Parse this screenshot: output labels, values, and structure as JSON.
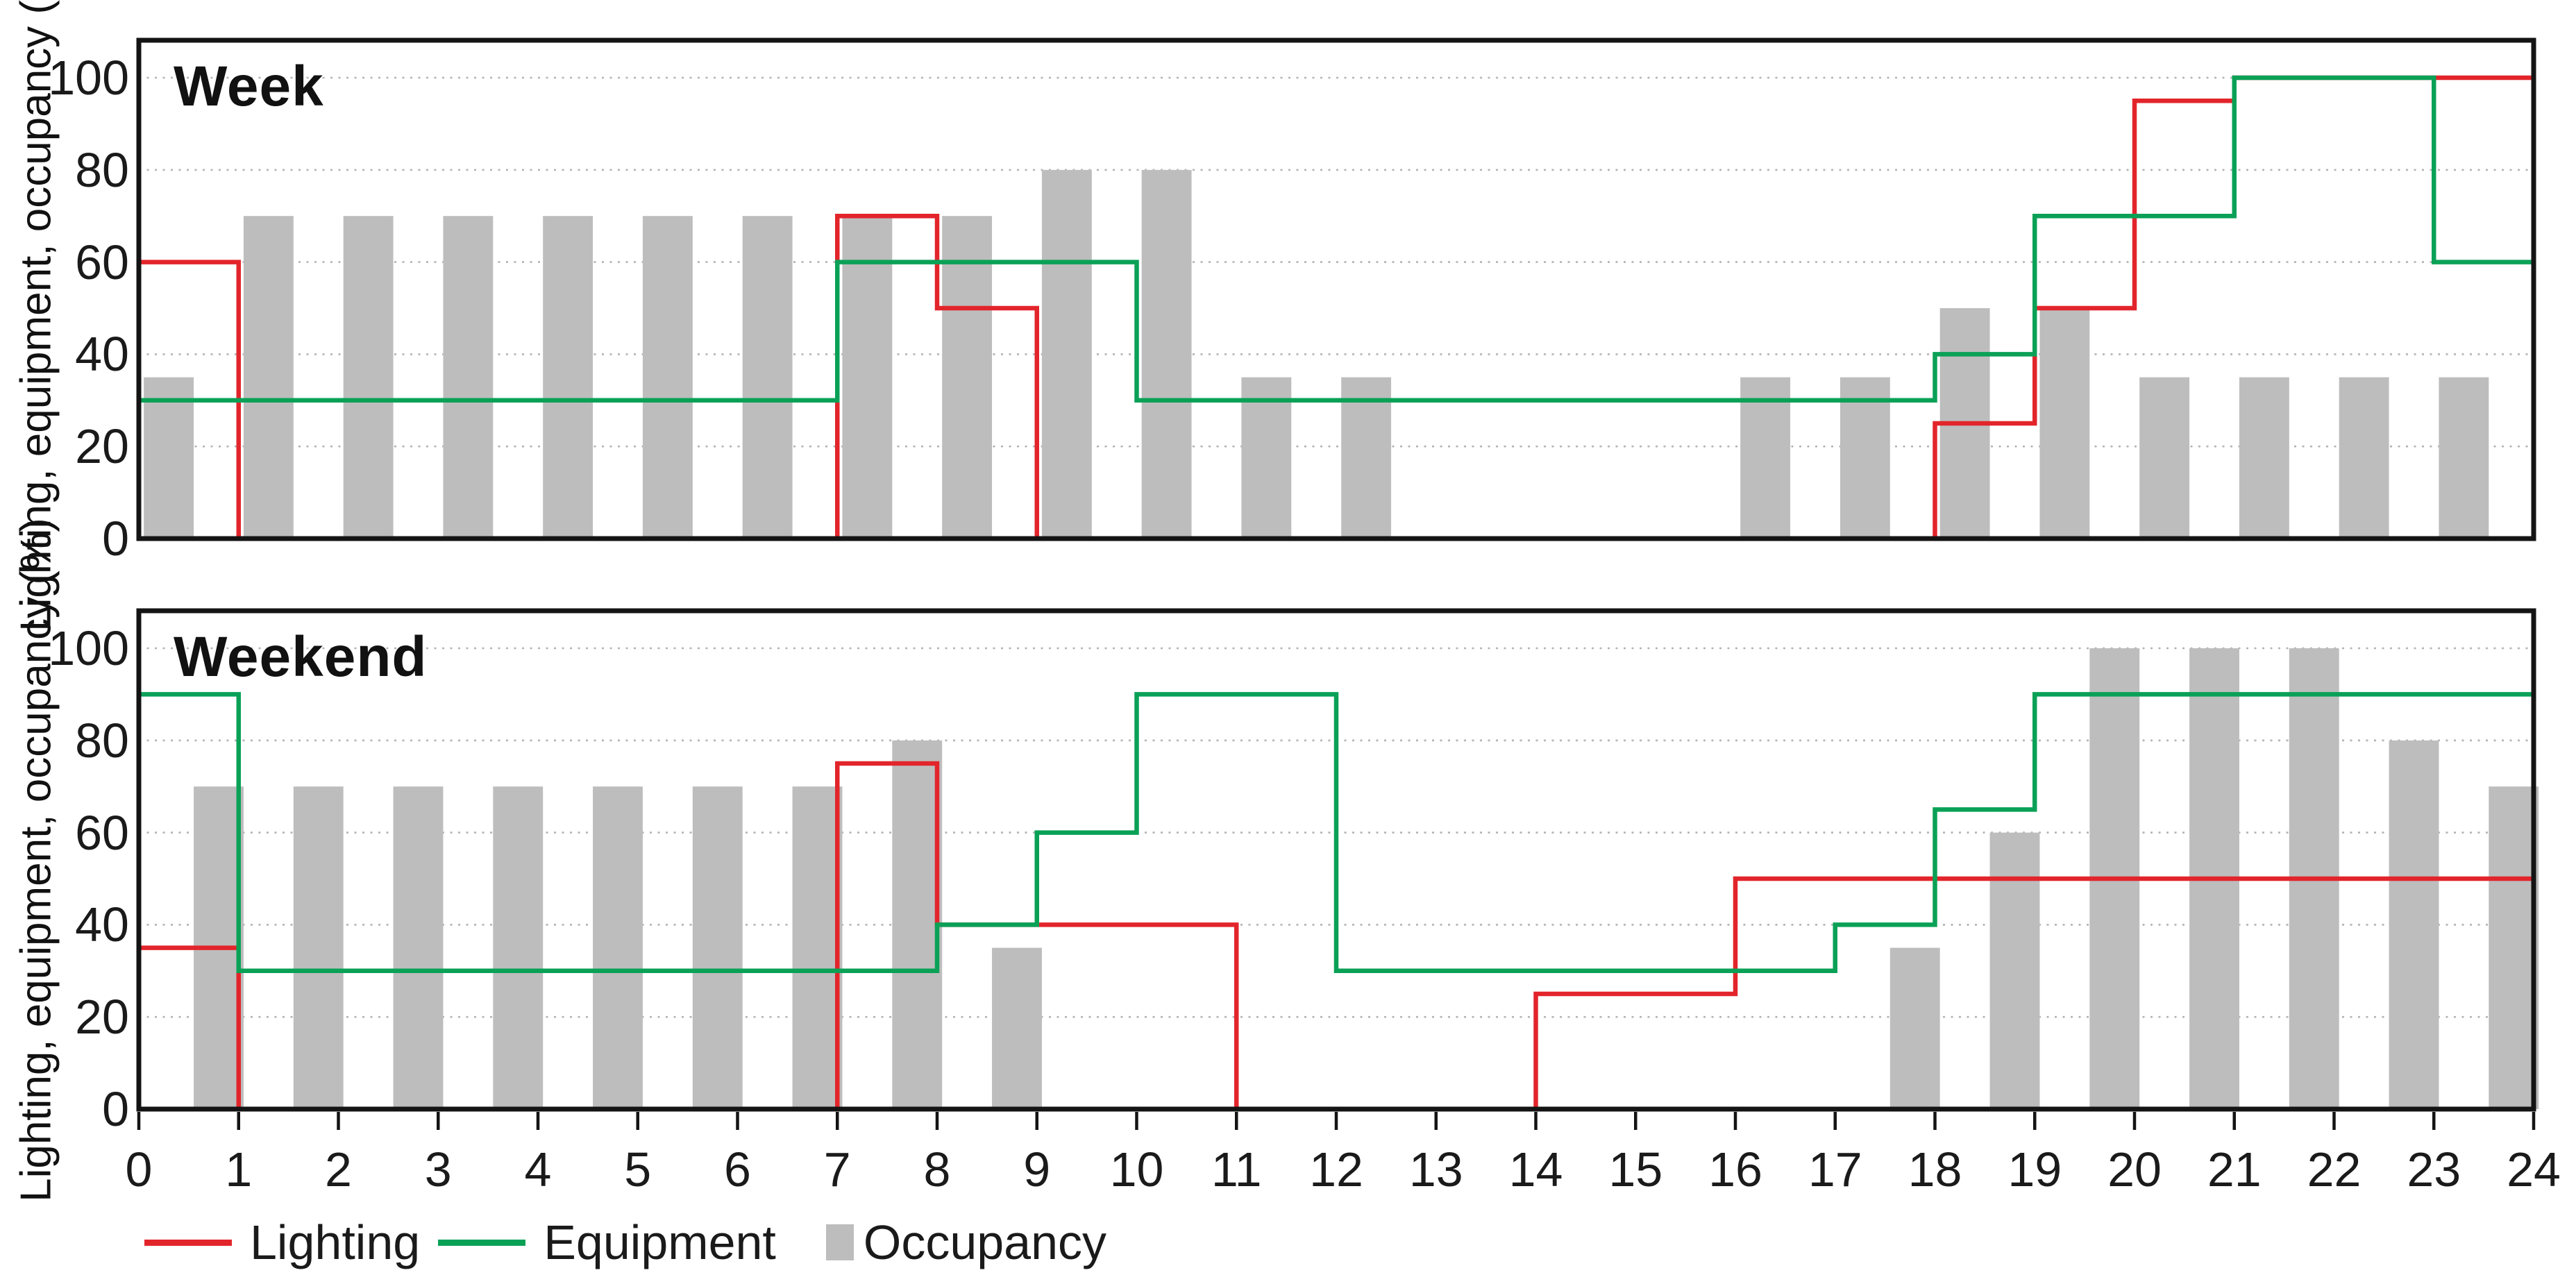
{
  "colors": {
    "lighting": "#e2252b",
    "equipment": "#0aa157",
    "occupancy": "#bdbdbd",
    "grid": "#b3b3b3",
    "axis": "#141414",
    "text": "#1a1a1a"
  },
  "y_axis_label": "Lighting, equipment, occupancy (%)",
  "legend": [
    {
      "label": "Lighting",
      "swatch": "line",
      "color_key": "lighting"
    },
    {
      "label": "Equipment",
      "swatch": "line",
      "color_key": "equipment"
    },
    {
      "label": "Occupancy",
      "swatch": "box",
      "color_key": "occupancy"
    }
  ],
  "chart_data": [
    {
      "type": "bar",
      "subtype": "step-lines-with-bars",
      "title": "Week",
      "xlim": [
        0,
        24
      ],
      "ylim": [
        0,
        100
      ],
      "x_ticks": [
        0,
        1,
        2,
        3,
        4,
        5,
        6,
        7,
        8,
        9,
        10,
        11,
        12,
        13,
        14,
        15,
        16,
        17,
        18,
        19,
        20,
        21,
        22,
        23,
        24
      ],
      "y_ticks": [
        0,
        20,
        40,
        60,
        80,
        100
      ],
      "grid": "dotted horizontal at 20,40,60,80,100",
      "series": [
        {
          "name": "Lighting",
          "style": "step-line",
          "unit": "%",
          "segments_hour_value": [
            [
              0,
              60
            ],
            [
              1,
              0
            ],
            [
              7,
              70
            ],
            [
              8,
              50
            ],
            [
              9,
              0
            ],
            [
              18,
              25
            ],
            [
              19,
              50
            ],
            [
              20,
              95
            ],
            [
              21,
              100
            ]
          ]
        },
        {
          "name": "Equipment",
          "style": "step-line",
          "unit": "%",
          "segments_hour_value": [
            [
              0,
              30
            ],
            [
              7,
              60
            ],
            [
              10,
              30
            ],
            [
              18,
              40
            ],
            [
              19,
              70
            ],
            [
              21,
              100
            ],
            [
              23,
              60
            ]
          ]
        }
      ],
      "bars": {
        "name": "Occupancy",
        "unit": "%",
        "bar_width_hours": 0.5,
        "values_xstart_value": [
          [
            0.05,
            35
          ],
          [
            1.05,
            70
          ],
          [
            2.05,
            70
          ],
          [
            3.05,
            70
          ],
          [
            4.05,
            70
          ],
          [
            5.05,
            70
          ],
          [
            6.05,
            70
          ],
          [
            7.05,
            70
          ],
          [
            8.05,
            70
          ],
          [
            9.05,
            80
          ],
          [
            10.05,
            80
          ],
          [
            11.05,
            35
          ],
          [
            12.05,
            35
          ],
          [
            16.05,
            35
          ],
          [
            17.05,
            35
          ],
          [
            18.05,
            50
          ],
          [
            19.05,
            50
          ],
          [
            20.05,
            35
          ],
          [
            21.05,
            35
          ],
          [
            22.05,
            35
          ],
          [
            23.05,
            35
          ]
        ]
      }
    },
    {
      "type": "bar",
      "subtype": "step-lines-with-bars",
      "title": "Weekend",
      "xlim": [
        0,
        24
      ],
      "ylim": [
        0,
        100
      ],
      "x_ticks": [
        0,
        1,
        2,
        3,
        4,
        5,
        6,
        7,
        8,
        9,
        10,
        11,
        12,
        13,
        14,
        15,
        16,
        17,
        18,
        19,
        20,
        21,
        22,
        23,
        24
      ],
      "y_ticks": [
        0,
        20,
        40,
        60,
        80,
        100
      ],
      "grid": "dotted horizontal at 20,40,60,80,100",
      "series": [
        {
          "name": "Lighting",
          "style": "step-line",
          "unit": "%",
          "segments_hour_value": [
            [
              0,
              35
            ],
            [
              1,
              0
            ],
            [
              7,
              75
            ],
            [
              8,
              40
            ],
            [
              11,
              0
            ],
            [
              14,
              25
            ],
            [
              16,
              50
            ]
          ]
        },
        {
          "name": "Equipment",
          "style": "step-line",
          "unit": "%",
          "segments_hour_value": [
            [
              0,
              90
            ],
            [
              1,
              30
            ],
            [
              8,
              40
            ],
            [
              9,
              60
            ],
            [
              10,
              90
            ],
            [
              12,
              30
            ],
            [
              17,
              40
            ],
            [
              18,
              65
            ],
            [
              19,
              90
            ]
          ]
        }
      ],
      "bars": {
        "name": "Occupancy",
        "unit": "%",
        "bar_width_hours": 0.5,
        "values_xstart_value": [
          [
            0.55,
            70
          ],
          [
            1.55,
            70
          ],
          [
            2.55,
            70
          ],
          [
            3.55,
            70
          ],
          [
            4.55,
            70
          ],
          [
            5.55,
            70
          ],
          [
            6.55,
            70
          ],
          [
            7.55,
            80
          ],
          [
            8.55,
            35
          ],
          [
            17.55,
            35
          ],
          [
            18.55,
            60
          ],
          [
            19.55,
            100
          ],
          [
            20.55,
            100
          ],
          [
            21.55,
            100
          ],
          [
            22.55,
            80
          ],
          [
            23.55,
            70
          ]
        ]
      }
    }
  ]
}
